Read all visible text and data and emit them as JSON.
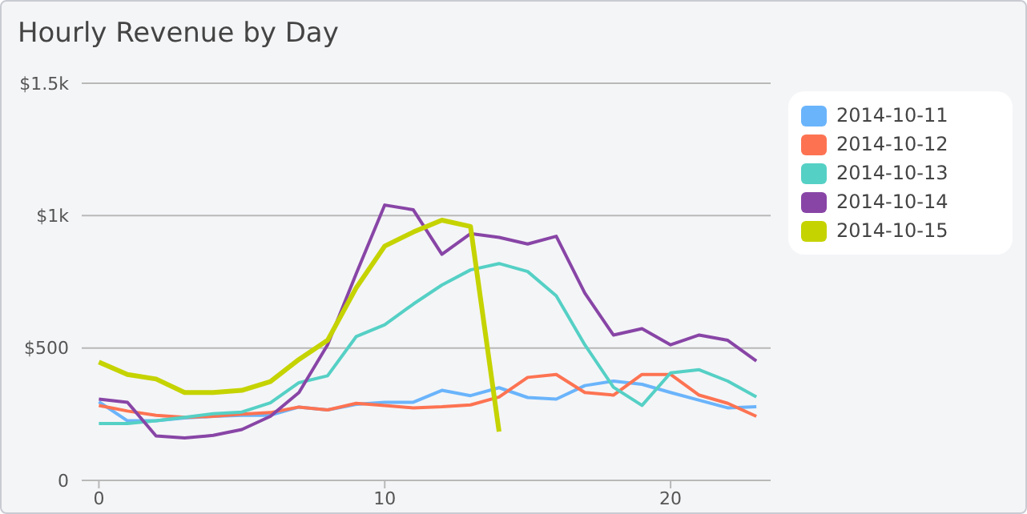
{
  "chart_data": {
    "type": "line",
    "title": "Hourly Revenue by Day",
    "x": [
      0,
      1,
      2,
      3,
      4,
      5,
      6,
      7,
      8,
      9,
      10,
      11,
      12,
      13,
      14,
      15,
      16,
      17,
      18,
      19,
      20,
      21,
      22,
      23
    ],
    "series": [
      {
        "name": "2014-10-11",
        "color": "#6ab4fb",
        "values": [
          297,
          225,
          225,
          236,
          242,
          246,
          246,
          277,
          266,
          287,
          295,
          295,
          340,
          320,
          350,
          313,
          307,
          358,
          375,
          363,
          332,
          303,
          274,
          278
        ]
      },
      {
        "name": "2014-10-12",
        "color": "#fd7352",
        "values": [
          283,
          262,
          246,
          238,
          242,
          250,
          256,
          277,
          266,
          291,
          283,
          274,
          278,
          285,
          315,
          389,
          400,
          332,
          322,
          400,
          400,
          322,
          291,
          242
        ]
      },
      {
        "name": "2014-10-13",
        "color": "#55d0c5",
        "values": [
          215,
          215,
          225,
          238,
          252,
          258,
          293,
          369,
          395,
          543,
          588,
          666,
          738,
          795,
          819,
          789,
          697,
          512,
          352,
          283,
          406,
          418,
          375,
          315
        ]
      },
      {
        "name": "2014-10-14",
        "color": "#8845a6",
        "values": [
          307,
          295,
          168,
          160,
          170,
          192,
          242,
          332,
          512,
          780,
          1040,
          1022,
          854,
          932,
          918,
          893,
          922,
          707,
          549,
          573,
          512,
          549,
          529,
          451
        ]
      },
      {
        "name": "2014-10-15",
        "color": "#c5d300",
        "values": [
          447,
          400,
          383,
          332,
          332,
          340,
          373,
          457,
          529,
          727,
          885,
          938,
          983,
          959,
          184,
          null,
          null,
          null,
          null,
          null,
          null,
          null,
          null,
          null
        ]
      }
    ],
    "xlim": [
      -0.6,
      23.5
    ],
    "xticks": [
      0,
      10,
      20
    ],
    "ylim": [
      0,
      1500
    ],
    "yticks": [
      {
        "value": 0,
        "label": "0"
      },
      {
        "value": 500,
        "label": "$500"
      },
      {
        "value": 1000,
        "label": "$1k"
      },
      {
        "value": 1500,
        "label": "$1.5k"
      }
    ],
    "grid": "y",
    "legend": "right",
    "marker": "none",
    "line_style": "solid"
  }
}
